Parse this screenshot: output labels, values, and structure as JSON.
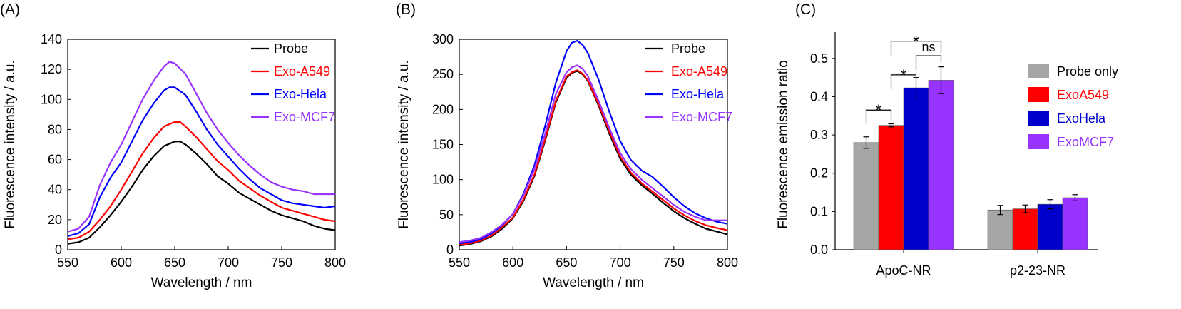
{
  "chart_data": [
    {
      "id": "A",
      "type": "line",
      "panel_label": "(A)",
      "title": "",
      "xlabel": "Wavelength / nm",
      "ylabel": "Fluorescence intensity / a.u.",
      "xlim": [
        550,
        800
      ],
      "ylim": [
        0,
        140
      ],
      "xticks": [
        550,
        600,
        650,
        700,
        750,
        800
      ],
      "yticks": [
        0,
        20,
        40,
        60,
        80,
        100,
        120,
        140
      ],
      "legend_position": "top-right",
      "series": [
        {
          "name": "Probe",
          "color": "#000000",
          "x": [
            550,
            560,
            570,
            580,
            590,
            600,
            610,
            620,
            630,
            640,
            650,
            655,
            660,
            670,
            680,
            690,
            700,
            710,
            720,
            730,
            740,
            750,
            760,
            770,
            780,
            790,
            800
          ],
          "y": [
            4,
            5,
            8,
            15,
            23,
            32,
            42,
            53,
            62,
            69,
            72,
            72,
            70,
            64,
            57,
            49,
            44,
            38,
            34,
            30,
            26,
            23,
            21,
            19,
            16,
            14,
            13
          ]
        },
        {
          "name": "Exo-A549",
          "color": "#ff0000",
          "x": [
            550,
            560,
            570,
            580,
            590,
            600,
            610,
            620,
            630,
            640,
            650,
            655,
            660,
            670,
            680,
            690,
            700,
            710,
            720,
            730,
            740,
            750,
            760,
            770,
            780,
            790,
            800
          ],
          "y": [
            7,
            8,
            12,
            20,
            29,
            40,
            52,
            64,
            74,
            82,
            85,
            85,
            82,
            75,
            67,
            59,
            53,
            46,
            41,
            36,
            32,
            28,
            26,
            24,
            22,
            20,
            19
          ]
        },
        {
          "name": "Exo-Hela",
          "color": "#0000ff",
          "x": [
            550,
            560,
            570,
            580,
            590,
            600,
            610,
            620,
            630,
            640,
            645,
            650,
            660,
            670,
            680,
            690,
            700,
            710,
            720,
            730,
            740,
            750,
            760,
            770,
            780,
            790,
            800
          ],
          "y": [
            9,
            11,
            17,
            35,
            48,
            58,
            72,
            86,
            97,
            106,
            108,
            108,
            103,
            92,
            80,
            70,
            62,
            54,
            47,
            41,
            37,
            33,
            31,
            30,
            29,
            28,
            29
          ]
        },
        {
          "name": "Exo-MCF7",
          "color": "#9933ff",
          "x": [
            550,
            560,
            570,
            580,
            590,
            600,
            610,
            620,
            630,
            640,
            645,
            650,
            660,
            670,
            680,
            690,
            700,
            710,
            720,
            730,
            740,
            750,
            760,
            770,
            780,
            790,
            800
          ],
          "y": [
            12,
            14,
            22,
            43,
            58,
            70,
            85,
            100,
            112,
            122,
            125,
            124,
            117,
            104,
            91,
            80,
            71,
            63,
            56,
            50,
            45,
            42,
            40,
            39,
            37,
            37,
            37
          ]
        }
      ]
    },
    {
      "id": "B",
      "type": "line",
      "panel_label": "(B)",
      "title": "",
      "xlabel": "Wavelength / nm",
      "ylabel": "Fluorescence intensity / a.u.",
      "xlim": [
        550,
        800
      ],
      "ylim": [
        0,
        300
      ],
      "xticks": [
        550,
        600,
        650,
        700,
        750,
        800
      ],
      "yticks": [
        0,
        50,
        100,
        150,
        200,
        250,
        300
      ],
      "legend_position": "top-right",
      "series": [
        {
          "name": "Probe",
          "color": "#000000",
          "x": [
            550,
            560,
            570,
            580,
            590,
            600,
            610,
            620,
            630,
            640,
            650,
            655,
            660,
            665,
            670,
            680,
            690,
            700,
            710,
            720,
            730,
            740,
            750,
            760,
            770,
            780,
            790,
            800
          ],
          "y": [
            6,
            8,
            12,
            19,
            30,
            45,
            70,
            105,
            155,
            210,
            245,
            252,
            255,
            250,
            240,
            205,
            165,
            130,
            107,
            92,
            80,
            67,
            55,
            45,
            37,
            30,
            26,
            22
          ]
        },
        {
          "name": "Exo-A549",
          "color": "#ff0000",
          "x": [
            550,
            560,
            570,
            580,
            590,
            600,
            610,
            620,
            630,
            640,
            650,
            655,
            660,
            665,
            670,
            680,
            690,
            700,
            710,
            720,
            730,
            740,
            750,
            760,
            770,
            780,
            790,
            800
          ],
          "y": [
            7,
            9,
            13,
            20,
            32,
            46,
            72,
            107,
            157,
            212,
            247,
            253,
            256,
            251,
            241,
            207,
            168,
            133,
            110,
            95,
            83,
            71,
            59,
            49,
            41,
            35,
            31,
            28
          ]
        },
        {
          "name": "Exo-Hela",
          "color": "#0000ff",
          "x": [
            550,
            560,
            570,
            580,
            590,
            600,
            610,
            620,
            630,
            640,
            650,
            655,
            660,
            665,
            670,
            680,
            690,
            700,
            710,
            720,
            730,
            740,
            750,
            760,
            770,
            780,
            790,
            800
          ],
          "y": [
            9,
            11,
            15,
            23,
            35,
            51,
            80,
            120,
            176,
            238,
            283,
            295,
            298,
            292,
            280,
            242,
            196,
            155,
            128,
            113,
            104,
            90,
            75,
            62,
            52,
            45,
            40,
            37
          ]
        },
        {
          "name": "Exo-MCF7",
          "color": "#9933ff",
          "x": [
            550,
            560,
            570,
            580,
            590,
            600,
            610,
            620,
            630,
            640,
            650,
            655,
            660,
            665,
            670,
            680,
            690,
            700,
            710,
            720,
            730,
            740,
            750,
            760,
            770,
            780,
            790,
            800
          ],
          "y": [
            11,
            13,
            17,
            25,
            36,
            51,
            78,
            115,
            165,
            222,
            253,
            260,
            263,
            258,
            247,
            212,
            173,
            138,
            115,
            100,
            88,
            76,
            64,
            54,
            47,
            42,
            42,
            42
          ]
        }
      ]
    },
    {
      "id": "C",
      "type": "bar",
      "panel_label": "(C)",
      "title": "",
      "xlabel": "",
      "ylabel": "Fluorescence emission ratio",
      "ylim": [
        0,
        0.55
      ],
      "yticks": [
        "0.0",
        "0.1",
        "0.2",
        "0.3",
        "0.4",
        "0.5"
      ],
      "categories": [
        "ApoC-NR",
        "p2-23-NR"
      ],
      "legend_position": "right",
      "series": [
        {
          "name": "Probe only",
          "color": "#a6a6a6",
          "values": [
            0.28,
            0.104
          ],
          "errors": [
            0.015,
            0.012
          ]
        },
        {
          "name": "ExoA549",
          "color": "#ff0000",
          "values": [
            0.325,
            0.107
          ],
          "errors": [
            0.004,
            0.01
          ]
        },
        {
          "name": "ExoHela",
          "color": "#0000cc",
          "values": [
            0.423,
            0.119
          ],
          "errors": [
            0.027,
            0.012
          ]
        },
        {
          "name": "ExoMCF7",
          "color": "#9933ff",
          "values": [
            0.443,
            0.136
          ],
          "errors": [
            0.035,
            0.008
          ]
        }
      ],
      "significance": [
        {
          "from": 0,
          "to": 1,
          "label": "*"
        },
        {
          "from": 1,
          "to": 2,
          "label": "*"
        },
        {
          "from": 2,
          "to": 3,
          "label": "ns"
        },
        {
          "from": 1,
          "to": 3,
          "label": "*"
        }
      ]
    }
  ]
}
